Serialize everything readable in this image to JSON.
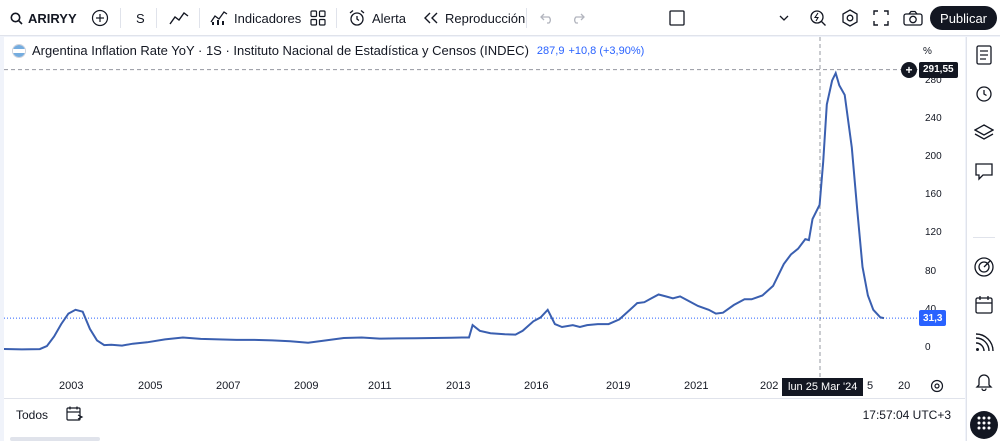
{
  "toolbar": {
    "symbol": "ARIRYY",
    "interval": "S",
    "indicators_label": "Indicadores",
    "alert_label": "Alerta",
    "replay_label": "Reproducción",
    "publish_label": "Publicar"
  },
  "legend": {
    "title": "Argentina Inflation Rate YoY · 1S · Instituto Nacional de Estadística y Censos (INDEC)",
    "value": "287,9",
    "change": "+10,8 (+3,90%)"
  },
  "y_axis": {
    "unit": "%",
    "ticks": [
      "280",
      "240",
      "200",
      "160",
      "120",
      "80",
      "40",
      "0"
    ],
    "crosshair_tag": "291,55",
    "last_value_tag": "31,3"
  },
  "x_axis": {
    "ticks": [
      "2003",
      "2005",
      "2007",
      "2009",
      "2011",
      "2013",
      "2016",
      "2019",
      "2021",
      "202",
      "5",
      "20"
    ],
    "crosshair_date": "lun 25 Mar '24"
  },
  "bottom": {
    "range_label": "Todos",
    "clock": "17:57:04 UTC+3"
  },
  "colors": {
    "line": "#2962ff",
    "accent_line": "#3a5fb0",
    "dark": "#131722",
    "last_value_bg": "#2962ff"
  },
  "chart_data": {
    "type": "line",
    "title": "Argentina Inflation Rate YoY",
    "xlabel": "",
    "ylabel": "%",
    "ylim": [
      -10,
      300
    ],
    "x_range": [
      2001.0,
      2025.6
    ],
    "series": [
      {
        "name": "Argentina Inflation Rate YoY",
        "points": [
          [
            2001.0,
            -1.0
          ],
          [
            2001.5,
            -1.5
          ],
          [
            2002.0,
            -1.2
          ],
          [
            2002.2,
            2.0
          ],
          [
            2002.4,
            12.0
          ],
          [
            2002.6,
            25.0
          ],
          [
            2002.8,
            36.0
          ],
          [
            2003.0,
            40.0
          ],
          [
            2003.2,
            38.0
          ],
          [
            2003.4,
            20.0
          ],
          [
            2003.6,
            8.0
          ],
          [
            2003.8,
            3.0
          ],
          [
            2004.0,
            3.5
          ],
          [
            2004.3,
            2.5
          ],
          [
            2004.6,
            4.5
          ],
          [
            2005.0,
            6.0
          ],
          [
            2005.5,
            9.0
          ],
          [
            2006.0,
            11.0
          ],
          [
            2006.5,
            9.5
          ],
          [
            2007.0,
            9.0
          ],
          [
            2007.5,
            8.5
          ],
          [
            2008.0,
            8.5
          ],
          [
            2008.5,
            8.0
          ],
          [
            2009.0,
            7.0
          ],
          [
            2009.5,
            5.5
          ],
          [
            2010.0,
            8.0
          ],
          [
            2010.5,
            10.5
          ],
          [
            2011.0,
            11.0
          ],
          [
            2011.5,
            9.8
          ],
          [
            2012.0,
            10.0
          ],
          [
            2012.5,
            10.2
          ],
          [
            2013.0,
            10.5
          ],
          [
            2013.5,
            10.8
          ],
          [
            2013.8,
            11.0
          ],
          [
            2014.0,
            11.0
          ],
          [
            2014.1,
            24.0
          ],
          [
            2014.3,
            18.0
          ],
          [
            2014.6,
            15.5
          ],
          [
            2015.0,
            14.5
          ],
          [
            2015.3,
            14.0
          ],
          [
            2015.5,
            18.0
          ],
          [
            2015.8,
            28.0
          ],
          [
            2016.0,
            32.0
          ],
          [
            2016.2,
            40.0
          ],
          [
            2016.4,
            25.0
          ],
          [
            2016.6,
            22.0
          ],
          [
            2016.9,
            24.0
          ],
          [
            2017.1,
            22.0
          ],
          [
            2017.3,
            24.0
          ],
          [
            2017.6,
            25.0
          ],
          [
            2017.9,
            25.0
          ],
          [
            2018.2,
            30.0
          ],
          [
            2018.5,
            40.0
          ],
          [
            2018.7,
            47.0
          ],
          [
            2018.9,
            48.0
          ],
          [
            2019.1,
            52.0
          ],
          [
            2019.3,
            56.0
          ],
          [
            2019.5,
            54.0
          ],
          [
            2019.7,
            52.0
          ],
          [
            2019.9,
            54.0
          ],
          [
            2020.1,
            50.0
          ],
          [
            2020.4,
            44.0
          ],
          [
            2020.7,
            40.0
          ],
          [
            2020.9,
            36.0
          ],
          [
            2021.1,
            37.0
          ],
          [
            2021.4,
            45.0
          ],
          [
            2021.7,
            51.0
          ],
          [
            2021.9,
            51.0
          ],
          [
            2022.2,
            55.0
          ],
          [
            2022.5,
            65.0
          ],
          [
            2022.8,
            88.0
          ],
          [
            2023.0,
            98.0
          ],
          [
            2023.2,
            104.0
          ],
          [
            2023.4,
            114.0
          ],
          [
            2023.5,
            113.0
          ],
          [
            2023.6,
            135.0
          ],
          [
            2023.8,
            150.0
          ],
          [
            2023.9,
            195.0
          ],
          [
            2024.0,
            255.0
          ],
          [
            2024.15,
            280.0
          ],
          [
            2024.25,
            287.9
          ],
          [
            2024.35,
            275.0
          ],
          [
            2024.5,
            265.0
          ],
          [
            2024.7,
            210.0
          ],
          [
            2024.85,
            145.0
          ],
          [
            2025.0,
            85.0
          ],
          [
            2025.15,
            55.0
          ],
          [
            2025.3,
            40.0
          ],
          [
            2025.5,
            32.0
          ],
          [
            2025.6,
            31.3
          ]
        ]
      }
    ]
  }
}
